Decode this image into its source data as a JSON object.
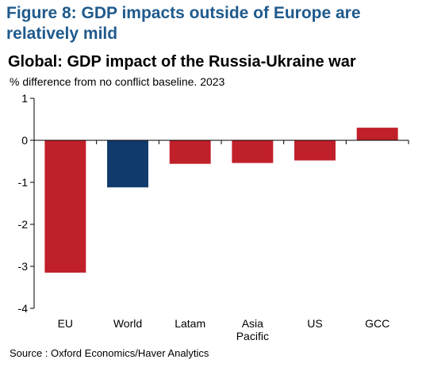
{
  "figure_title": "Figure 8: GDP impacts outside of Europe are relatively mild",
  "source": "Source : Oxford Economics/Haver Analytics",
  "chart_data": {
    "type": "bar",
    "title": "Global: GDP impact of the Russia-Ukraine war",
    "subtitle": "% difference from no conflict baseline. 2023",
    "categories": [
      "EU",
      "World",
      "Latam",
      "Asia Pacific",
      "US",
      "GCC"
    ],
    "category_lines": [
      [
        "EU"
      ],
      [
        "World"
      ],
      [
        "Latam"
      ],
      [
        "Asia",
        "Pacific"
      ],
      [
        "US"
      ],
      [
        "GCC"
      ]
    ],
    "values": [
      -3.15,
      -1.12,
      -0.56,
      -0.54,
      -0.48,
      0.3
    ],
    "bar_colors": [
      "#c0202a",
      "#0f3a6b",
      "#c0202a",
      "#c0202a",
      "#c0202a",
      "#c0202a"
    ],
    "ylim": [
      -4,
      1
    ],
    "yticks": [
      1,
      0,
      -1,
      -2,
      -3,
      -4
    ],
    "grid": false,
    "legend": "none"
  }
}
